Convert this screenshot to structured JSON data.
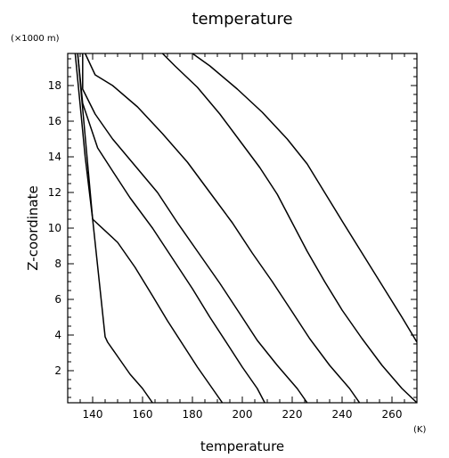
{
  "chart_data": {
    "type": "line",
    "title": "temperature",
    "xlabel": "temperature",
    "ylabel": "Z-coordinate",
    "x_unit": "(K)",
    "y_unit": "(×1000 m)",
    "xlim": [
      130,
      270
    ],
    "ylim": [
      0.2,
      19.8
    ],
    "x_ticks": [
      140,
      160,
      180,
      200,
      220,
      240,
      260
    ],
    "y_ticks": [
      2,
      4,
      6,
      8,
      10,
      12,
      14,
      16,
      18
    ],
    "grid": false,
    "series": [
      {
        "points": [
          [
            164,
            0.2
          ],
          [
            160,
            1
          ],
          [
            155,
            1.8
          ],
          [
            150,
            2.8
          ],
          [
            146,
            3.6
          ],
          [
            145,
            3.9
          ],
          [
            140,
            10.5
          ],
          [
            134,
            19.8
          ]
        ]
      },
      {
        "points": [
          [
            192,
            0.2
          ],
          [
            188,
            1
          ],
          [
            182,
            2.2
          ],
          [
            176,
            3.5
          ],
          [
            170,
            4.8
          ],
          [
            164,
            6.2
          ],
          [
            157,
            7.8
          ],
          [
            150,
            9.2
          ],
          [
            140,
            10.5
          ],
          [
            137,
            14
          ],
          [
            133,
            19.8
          ]
        ]
      },
      {
        "points": [
          [
            209,
            0.2
          ],
          [
            206,
            1
          ],
          [
            200,
            2.2
          ],
          [
            194,
            3.5
          ],
          [
            187,
            5
          ],
          [
            180,
            6.6
          ],
          [
            172,
            8.3
          ],
          [
            164,
            10
          ],
          [
            155,
            11.7
          ],
          [
            148,
            13.2
          ],
          [
            142,
            14.5
          ],
          [
            136,
            17
          ],
          [
            134,
            19.8
          ]
        ]
      },
      {
        "points": [
          [
            226,
            0.2
          ],
          [
            222,
            1
          ],
          [
            214,
            2.3
          ],
          [
            206,
            3.7
          ],
          [
            199,
            5.2
          ],
          [
            191,
            6.9
          ],
          [
            183,
            8.5
          ],
          [
            174,
            10.3
          ],
          [
            166,
            12
          ],
          [
            157,
            13.5
          ],
          [
            148,
            15
          ],
          [
            141,
            16.4
          ],
          [
            136,
            17.8
          ],
          [
            136,
            19.8
          ]
        ]
      },
      {
        "points": [
          [
            247,
            0.2
          ],
          [
            243,
            1
          ],
          [
            235,
            2.3
          ],
          [
            227,
            3.8
          ],
          [
            220,
            5.3
          ],
          [
            212,
            7
          ],
          [
            204,
            8.6
          ],
          [
            196,
            10.3
          ],
          [
            187,
            12
          ],
          [
            178,
            13.7
          ],
          [
            168,
            15.3
          ],
          [
            158,
            16.8
          ],
          [
            148,
            18
          ],
          [
            141,
            18.6
          ],
          [
            137,
            19.8
          ]
        ]
      },
      {
        "points": [
          [
            270,
            0.2
          ],
          [
            264,
            1
          ],
          [
            256,
            2.3
          ],
          [
            248,
            3.8
          ],
          [
            240,
            5.4
          ],
          [
            233,
            7
          ],
          [
            226,
            8.7
          ],
          [
            220,
            10.3
          ],
          [
            214,
            11.9
          ],
          [
            207,
            13.4
          ],
          [
            199,
            14.9
          ],
          [
            191,
            16.4
          ],
          [
            182,
            17.9
          ],
          [
            173,
            19.1
          ],
          [
            168,
            19.8
          ]
        ]
      },
      {
        "points": [
          [
            270,
            3.6
          ],
          [
            264,
            5
          ],
          [
            256,
            6.8
          ],
          [
            248,
            8.6
          ],
          [
            240,
            10.4
          ],
          [
            233,
            12
          ],
          [
            226,
            13.6
          ],
          [
            218,
            15
          ],
          [
            208,
            16.5
          ],
          [
            198,
            17.8
          ],
          [
            187,
            19.1
          ],
          [
            180,
            19.8
          ]
        ]
      }
    ]
  }
}
